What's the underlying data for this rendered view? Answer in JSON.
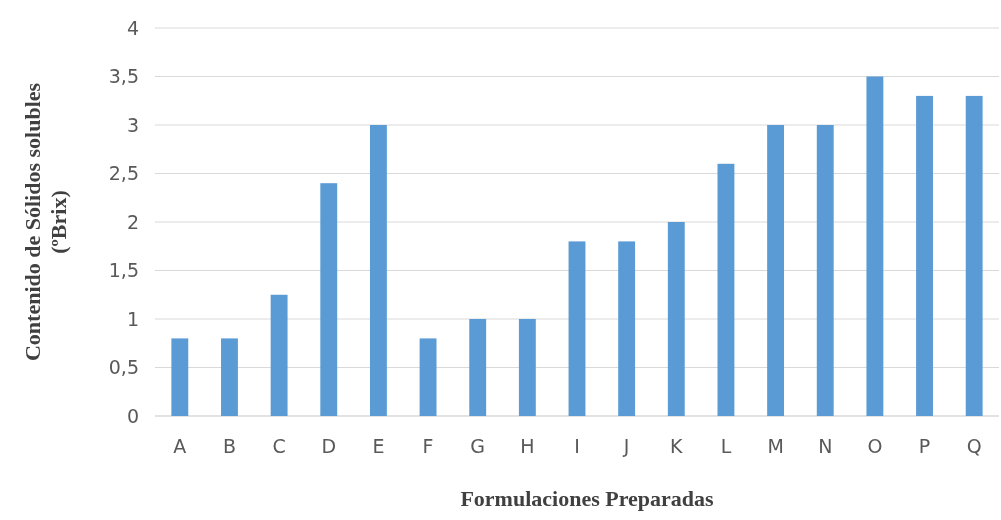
{
  "chart_data": {
    "type": "bar",
    "xlabel": "Formulaciones Preparadas",
    "ylabel": "Contenido de Sólidos solubles\n(ºBrix)",
    "categories": [
      "A",
      "B",
      "C",
      "D",
      "E",
      "F",
      "G",
      "H",
      "I",
      "J",
      "K",
      "L",
      "M",
      "N",
      "O",
      "P",
      "Q"
    ],
    "values": [
      0.8,
      0.8,
      1.25,
      2.4,
      3,
      0.8,
      1,
      1,
      1.8,
      1.8,
      2,
      2.6,
      3,
      3,
      3.5,
      3.3,
      3.3
    ],
    "color": "#5b9bd5",
    "ylim": [
      0,
      4
    ],
    "yticks": [
      0,
      {
        "value": 0.5,
        "label": "0,5"
      },
      1,
      {
        "value": 1.5,
        "label": "1,5"
      },
      2,
      {
        "value": 2.5,
        "label": "2,5"
      },
      3,
      {
        "value": 3.5,
        "label": "3,5"
      },
      4
    ],
    "grid": "y"
  }
}
